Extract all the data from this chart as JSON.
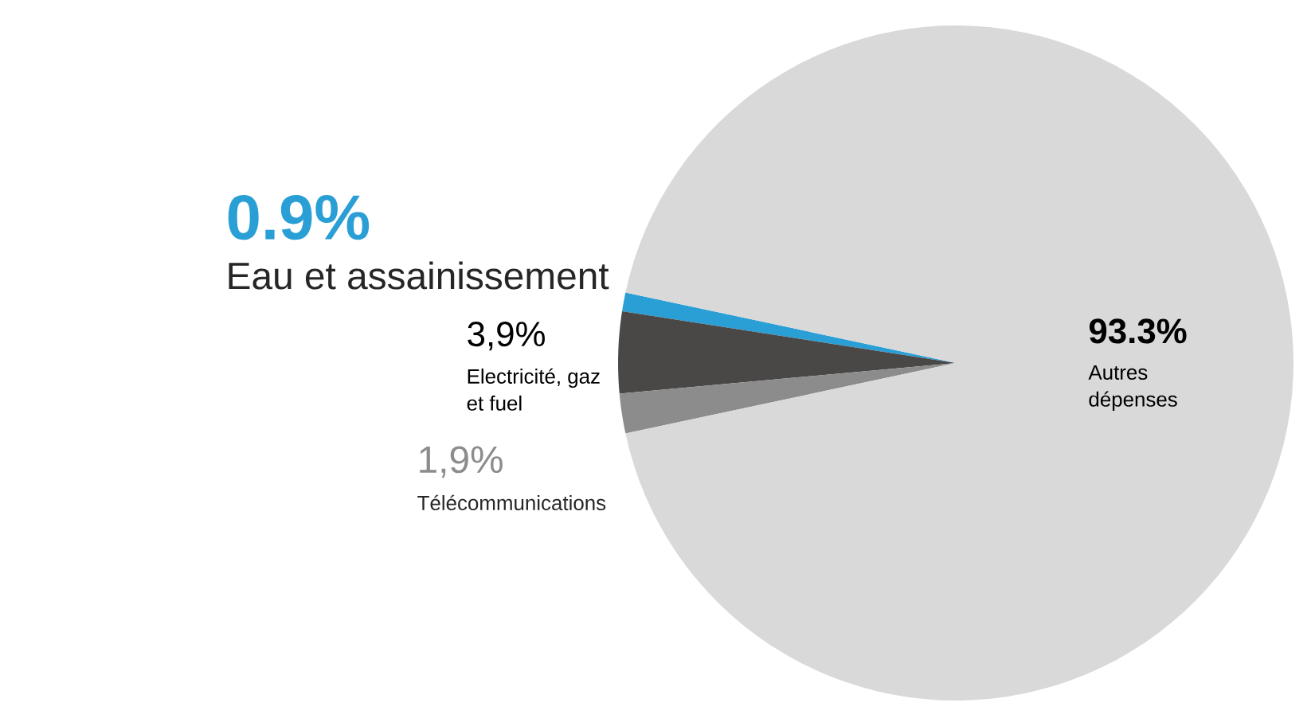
{
  "chart_data": {
    "type": "pie",
    "categories": [
      "Eau et assainissement",
      "Electricité, gaz et fuel",
      "Télécommunications",
      "Autres dépenses"
    ],
    "values": [
      0.9,
      3.9,
      1.9,
      93.3
    ],
    "value_labels": [
      "0.9%",
      "3,9%",
      "1,9%",
      "93.3%"
    ],
    "colors": [
      "#2a9fd6",
      "#4a4747",
      "#8c8c8c",
      "#d9d9d9"
    ]
  }
}
